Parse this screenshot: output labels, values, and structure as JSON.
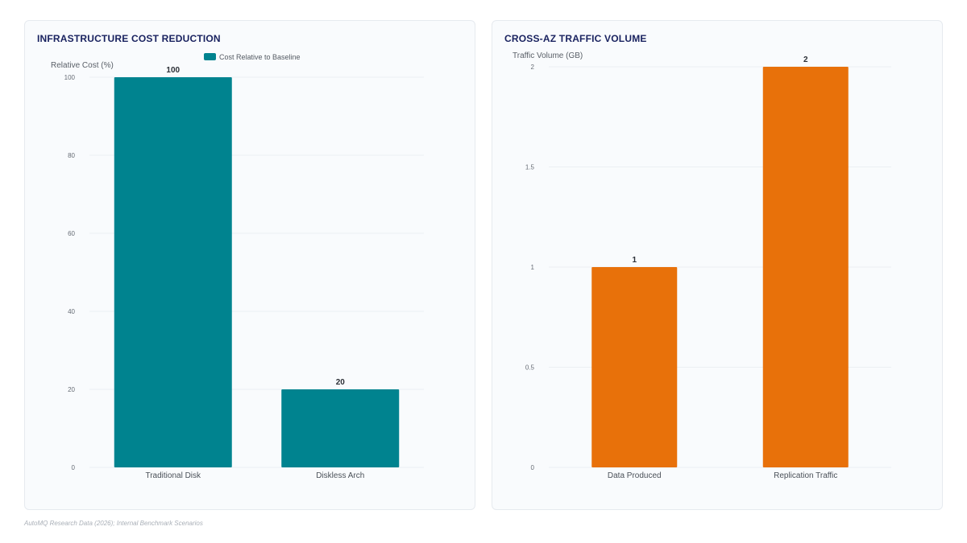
{
  "chart_data": [
    {
      "type": "bar",
      "title": "INFRASTRUCTURE COST REDUCTION",
      "ylabel": "Relative Cost (%)",
      "xlabel": "",
      "categories": [
        "Traditional Disk",
        "Diskless Arch"
      ],
      "series": [
        {
          "name": "Cost Relative to Baseline",
          "values": [
            100,
            20
          ]
        }
      ],
      "data_labels": [
        "100",
        "20"
      ],
      "ylim": [
        0,
        100
      ],
      "yticks": [
        0,
        20,
        40,
        60,
        80,
        100
      ],
      "ytick_labels": [
        "0",
        "20",
        "40",
        "60",
        "80",
        "100"
      ],
      "grid": true,
      "legend": "top-center",
      "color": "#00838f"
    },
    {
      "type": "bar",
      "title": "CROSS-AZ TRAFFIC VOLUME",
      "ylabel": "Traffic Volume (GB)",
      "xlabel": "",
      "categories": [
        "Data Produced",
        "Replication Traffic"
      ],
      "series": [
        {
          "values": [
            1,
            2
          ]
        }
      ],
      "data_labels": [
        "1",
        "2"
      ],
      "ylim": [
        0,
        2
      ],
      "yticks": [
        0,
        0.5,
        1,
        1.5,
        2
      ],
      "ytick_labels": [
        "0",
        "0.5",
        "1",
        "1.5",
        "2"
      ],
      "grid": true,
      "legend": "none",
      "color": "#e8710a"
    }
  ],
  "footer": {
    "source": "AutoMQ Research Data (2026); Internal Benchmark Scenarios"
  }
}
